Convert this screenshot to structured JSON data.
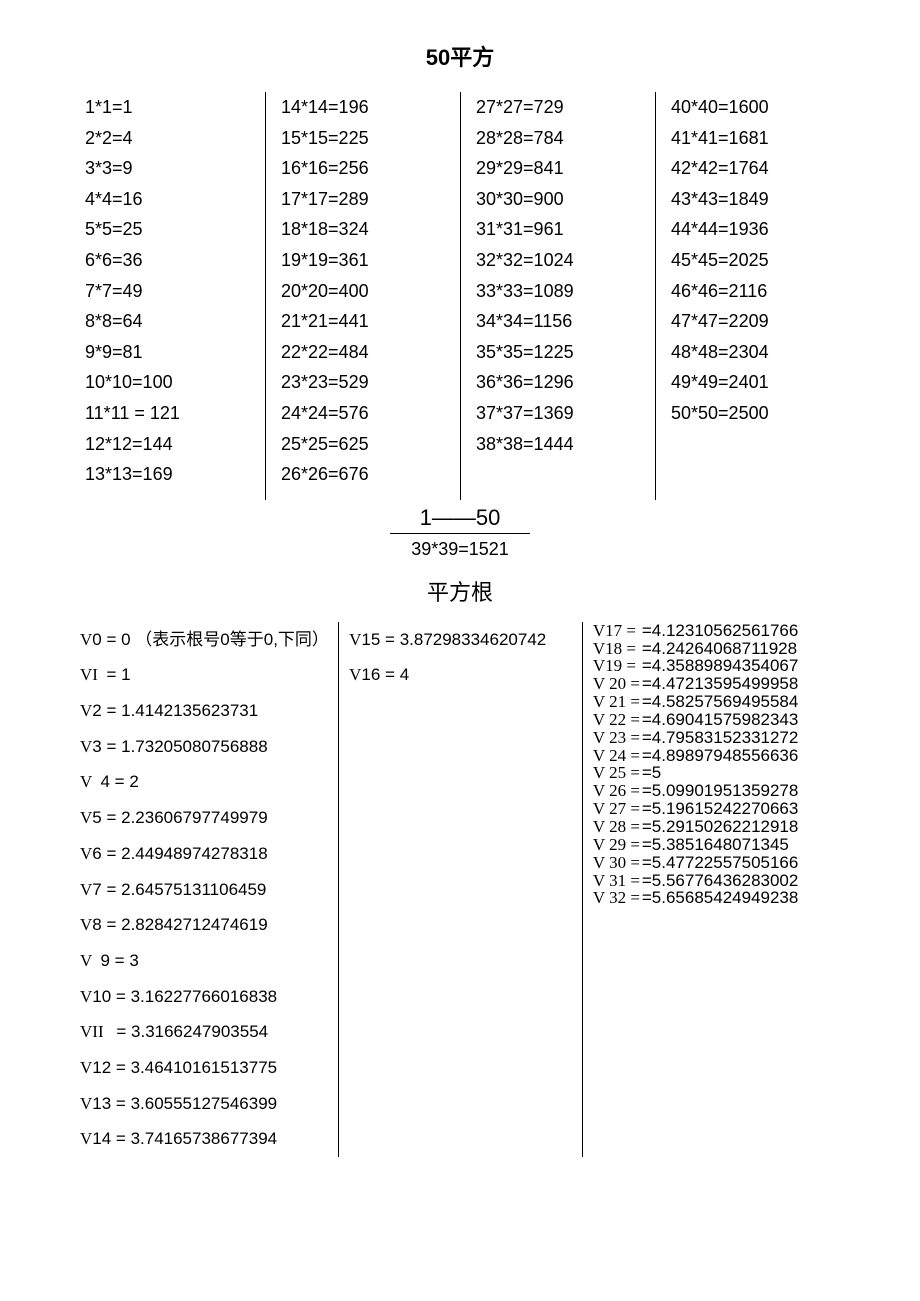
{
  "title_squares": "50平方",
  "squares": {
    "col1": [
      "1*1=1",
      "2*2=4",
      "3*3=9",
      "4*4=16",
      "5*5=25",
      "6*6=36",
      "7*7=49",
      "8*8=64",
      "9*9=81",
      "10*10=100",
      "11*11 = 121",
      "12*12=144",
      "13*13=169"
    ],
    "col2": [
      "14*14=196",
      "15*15=225",
      "16*16=256",
      "17*17=289",
      "18*18=324",
      "19*19=361",
      "20*20=400",
      "21*21=441",
      "22*22=484",
      "23*23=529",
      "24*24=576",
      "25*25=625",
      "26*26=676"
    ],
    "col3": [
      "27*27=729",
      "28*28=784",
      "29*29=841",
      "30*30=900",
      "31*31=961",
      "32*32=1024",
      "33*33=1089",
      "34*34=1156",
      "35*35=1225",
      "36*36=1296",
      "37*37=1369",
      "38*38=1444"
    ],
    "col4": [
      "40*40=1600",
      "41*41=1681",
      "42*42=1764",
      "43*43=1849",
      "44*44=1936",
      "45*45=2025",
      "46*46=2116",
      "47*47=2209",
      "48*48=2304",
      "49*49=2401",
      "50*50=2500"
    ]
  },
  "middle_label": "1——50",
  "orphan_square": "39*39=1521",
  "title_roots": "平方根",
  "roots_col1": [
    "V0 = 0 （表示根号0等于0,下同）",
    "VI  = 1",
    "V2 = 1.4142135623731",
    "V3 = 1.73205080756888",
    "V  4 = 2",
    "V5 = 2.23606797749979",
    "V6 = 2.44948974278318",
    "V7 = 2.64575131106459",
    "V8 = 2.82842712474619",
    "V  9 = 3",
    "V10 = 3.16227766016838",
    "VII   = 3.3166247903554",
    "V12 = 3.46410161513775",
    "V13 = 3.60555127546399",
    "V14 = 3.74165738677394"
  ],
  "roots_col2": [
    "V15 = 3.87298334620742",
    "V16 = 4"
  ],
  "roots_col3": [
    {
      "l": "V17 =",
      "v": "=4.12310562561766"
    },
    {
      "l": "V18 =",
      "v": "=4.24264068711928"
    },
    {
      "l": "V19 =",
      "v": "=4.35889894354067"
    },
    {
      "l": "V 20 =",
      "v": "=4.47213595499958"
    },
    {
      "l": "V 21 =",
      "v": "=4.58257569495584"
    },
    {
      "l": "V 22 =",
      "v": "=4.69041575982343"
    },
    {
      "l": "V 23 =",
      "v": "=4.79583152331272"
    },
    {
      "l": "V 24 =",
      "v": "=4.89897948556636"
    },
    {
      "l": "V 25 =",
      "v": "=5"
    },
    {
      "l": "V 26 =",
      "v": "=5.09901951359278"
    },
    {
      "l": "V 27 =",
      "v": "=5.19615242270663"
    },
    {
      "l": "V 28 =",
      "v": "=5.29150262212918"
    },
    {
      "l": "V 29 =",
      "v": "=5.3851648071345"
    },
    {
      "l": "V 30 =",
      "v": "=5.47722557505166"
    },
    {
      "l": "V 31 =",
      "v": "=5.56776436283002"
    },
    {
      "l": "V 32 =",
      "v": "=5.65685424949238"
    }
  ]
}
